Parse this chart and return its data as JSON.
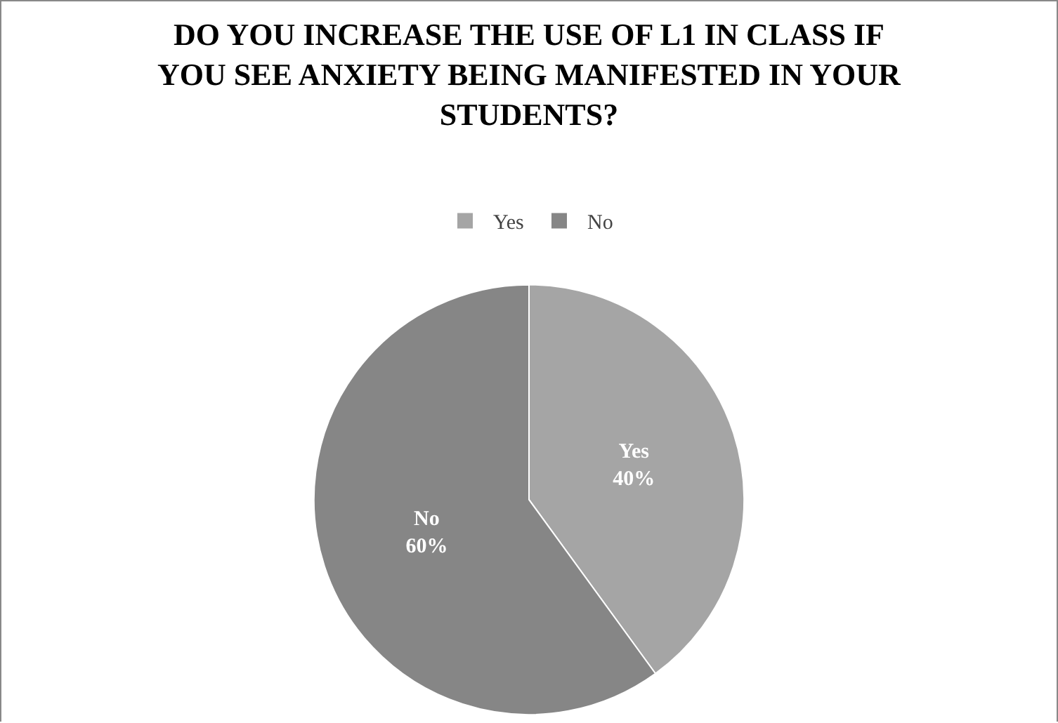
{
  "chart_data": {
    "type": "pie",
    "title": "DO YOU INCREASE THE USE OF L1 IN CLASS IF YOU SEE ANXIETY BEING MANIFESTED IN YOUR STUDENTS?",
    "categories": [
      "Yes",
      "No"
    ],
    "values": [
      40,
      60
    ],
    "value_labels": [
      "40%",
      "60%"
    ],
    "colors": [
      "#a5a5a5",
      "#868686"
    ],
    "legend": "top"
  }
}
